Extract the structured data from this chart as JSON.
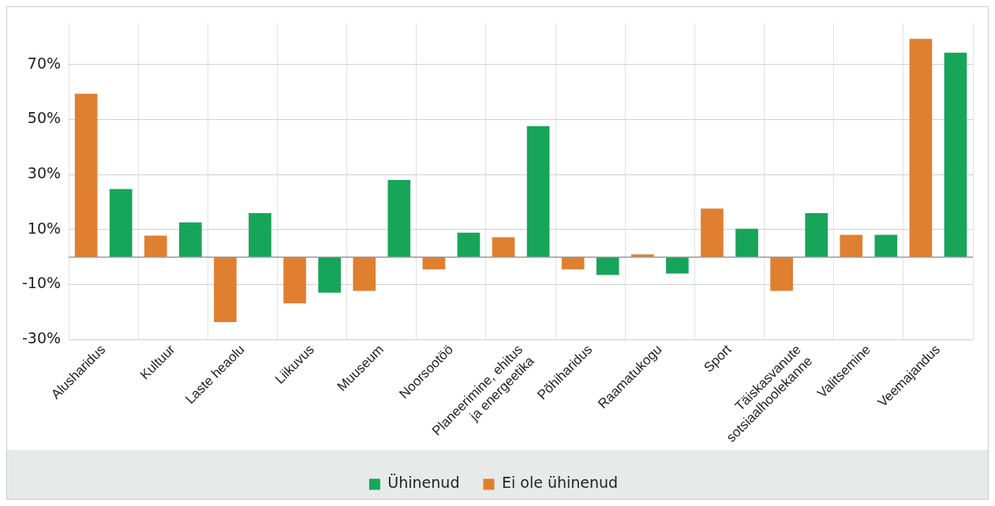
{
  "chart_data": {
    "type": "bar",
    "categories": [
      "Alusharidus",
      "Kultuur",
      "Laste heaolu",
      "Liikuvus",
      "Muuseum",
      "Noorsootöö",
      "Planeerimine, ehitus ja energeetika",
      "Põhiharidus",
      "Raamatukogu",
      "Sport",
      "Täiskasvanute sotsiaalhoolekanne",
      "Valitsemine",
      "Veemajandus"
    ],
    "series": [
      {
        "name": "Ei ole ühinenud",
        "color": "#e07f30",
        "values": [
          59.4,
          7.8,
          -23.6,
          -16.8,
          -12.3,
          -4.5,
          7.2,
          -4.5,
          1,
          17.6,
          -12.3,
          8.1,
          79.3
        ]
      },
      {
        "name": "Ühinenud",
        "color": "#17a55a",
        "values": [
          24.7,
          12.6,
          16,
          -12.9,
          28,
          8.9,
          47.6,
          -6.5,
          -6,
          10.3,
          16,
          8.1,
          74.3
        ]
      }
    ],
    "ylim": [
      -30,
      85
    ],
    "yticks": [
      {
        "value": -30,
        "label": "-30%"
      },
      {
        "value": -10,
        "label": "-10%"
      },
      {
        "value": 10,
        "label": "10%"
      },
      {
        "value": 30,
        "label": "30%"
      },
      {
        "value": 50,
        "label": "50%"
      },
      {
        "value": 70,
        "label": "70%"
      }
    ],
    "grid": true,
    "legend": "bottom"
  }
}
